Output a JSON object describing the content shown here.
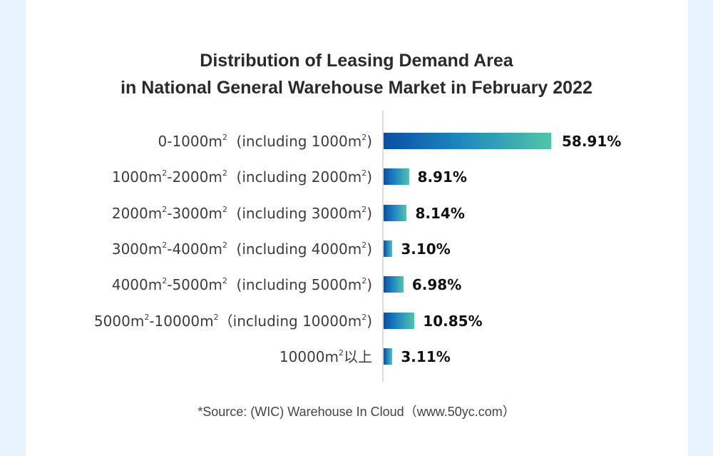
{
  "colors": {
    "background": "#e8f3fd",
    "card": "#ffffff",
    "bar_gradient_start": "#0a4fa3",
    "bar_gradient_end": "#53c4a8"
  },
  "chart_data": {
    "type": "bar",
    "orientation": "horizontal",
    "title_lines": [
      "Distribution of Leasing Demand Area",
      "in National General Warehouse Market in February 2022"
    ],
    "categories": [
      {
        "pre": "0-1000m",
        "mid": "  (including 1000m",
        "post": ")",
        "sup1": "2",
        "sup2": "2",
        "kind": "single"
      },
      {
        "pre": "1000m",
        "a": "-2000m",
        "mid": "  (including 2000m",
        "post": ")",
        "sup1": "2",
        "sup2": "2",
        "sup3": "2",
        "kind": "range"
      },
      {
        "pre": "2000m",
        "a": "-3000m",
        "mid": "  (including 3000m",
        "post": ")",
        "sup1": "2",
        "sup2": "2",
        "sup3": "2",
        "kind": "range"
      },
      {
        "pre": "3000m",
        "a": "-4000m",
        "mid": "  (including 4000m",
        "post": ")",
        "sup1": "2",
        "sup2": "2",
        "sup3": "2",
        "kind": "range"
      },
      {
        "pre": "4000m",
        "a": "-5000m",
        "mid": "  (including 5000m",
        "post": ")",
        "sup1": "2",
        "sup2": "2",
        "sup3": "2",
        "kind": "range"
      },
      {
        "pre": "5000m",
        "a": "-10000m",
        "mid": "（including 10000m",
        "post": ")",
        "sup1": "2",
        "sup2": "2",
        "sup3": "2",
        "kind": "range"
      },
      {
        "pre": "10000m",
        "post": "以上",
        "sup1": "2",
        "kind": "above"
      }
    ],
    "category_labels": [
      "0-1000m2 (including 1000m2)",
      "1000m2-2000m2 (including 2000m2)",
      "2000m2-3000m2 (including 3000m2)",
      "3000m2-4000m2 (including 4000m2)",
      "4000m2-5000m2 (including 5000m2)",
      "5000m2-10000m2 (including 10000m2)",
      "10000m2以上"
    ],
    "values": [
      58.91,
      8.91,
      8.14,
      3.1,
      6.98,
      10.85,
      3.11
    ],
    "value_labels": [
      "58.91%",
      "8.91%",
      "8.14%",
      "3.10%",
      "6.98%",
      "10.85%",
      "3.11%"
    ],
    "unit": "%",
    "xlim": [
      0,
      100
    ],
    "grid": false,
    "legend": "none"
  },
  "source": "*Source: (WIC) Warehouse In Cloud（www.50yc.com）"
}
